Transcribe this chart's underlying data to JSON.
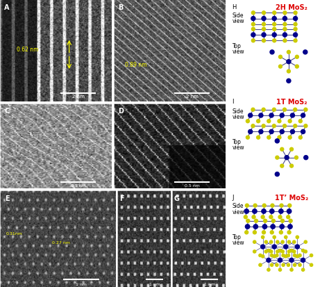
{
  "bg_color": "#ffffff",
  "mo_color": "#00008B",
  "s_color": "#cccc00",
  "bond_color": "#4a4a8a",
  "title_H": "2H MoS₂",
  "title_I": "1T MoS₂",
  "title_J": "1T’ MoS₂",
  "label_H": "H",
  "label_I": "I",
  "label_J": "J",
  "red_color": "#dd0000",
  "text_color": "#000000",
  "label_A": "A",
  "label_B": "B",
  "label_C": "C",
  "label_D": "D",
  "label_E": "E",
  "label_F": "F",
  "label_G": "G",
  "scale_color": "#ffffff",
  "yellow_color": "#ffff00",
  "measurement_color": "#ffff00"
}
